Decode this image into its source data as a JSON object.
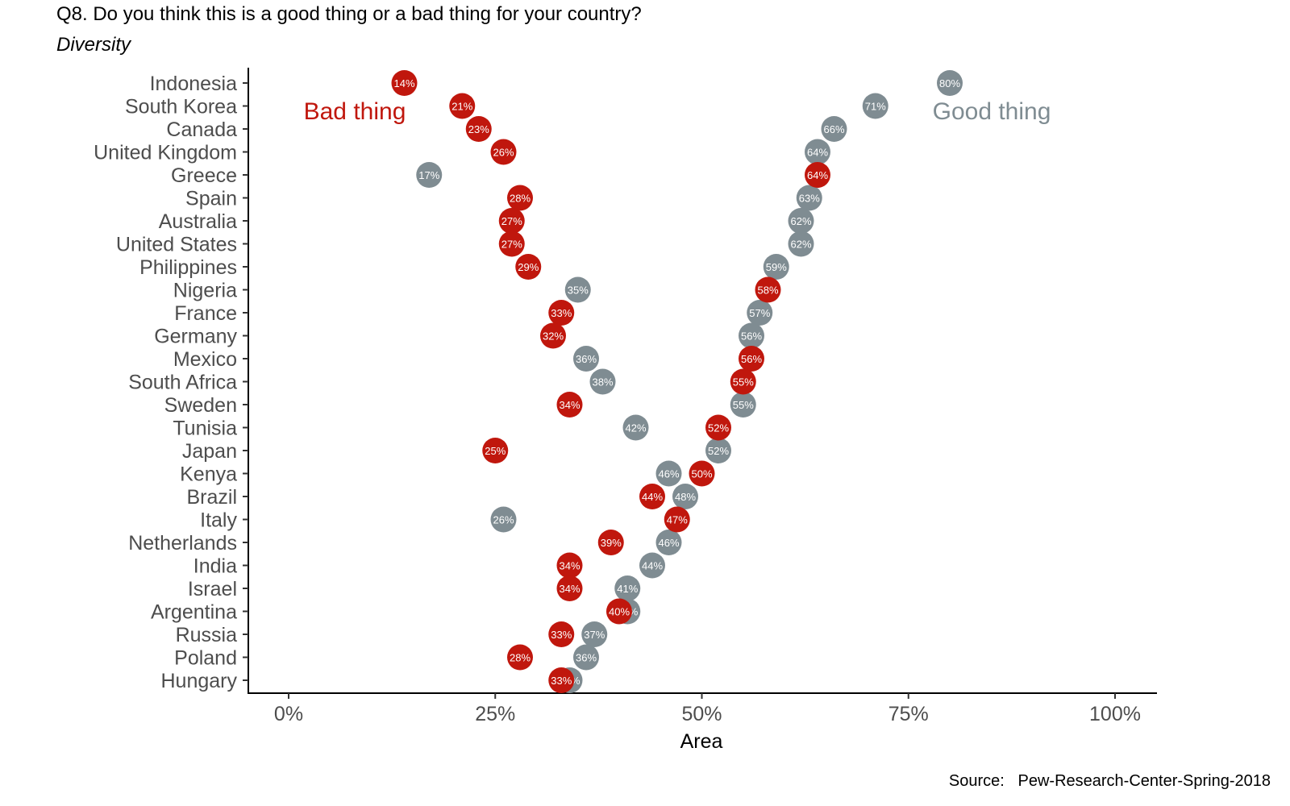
{
  "title": "Q8. Do you think this is a good thing or a bad thing for your country?",
  "subtitle": "Diversity",
  "caption": "Source:   Pew-Research-Center-Spring-2018",
  "chart_data": {
    "type": "scatter",
    "xlabel": "Area",
    "ylabel": "",
    "xlim": [
      0,
      100
    ],
    "x_ticks": [
      "0%",
      "25%",
      "50%",
      "75%",
      "100%"
    ],
    "x_tick_values": [
      0,
      25,
      50,
      75,
      100
    ],
    "grid": false,
    "categories": [
      "Indonesia",
      "South Korea",
      "Canada",
      "United Kingdom",
      "Greece",
      "Spain",
      "Australia",
      "United States",
      "Philippines",
      "Nigeria",
      "France",
      "Germany",
      "Mexico",
      "South Africa",
      "Sweden",
      "Tunisia",
      "Japan",
      "Kenya",
      "Brazil",
      "Italy",
      "Netherlands",
      "India",
      "Israel",
      "Argentina",
      "Russia",
      "Poland",
      "Hungary"
    ],
    "series": [
      {
        "name": "Good thing",
        "color": "#7f8c92",
        "values": [
          80,
          71,
          66,
          64,
          17,
          63,
          62,
          62,
          59,
          35,
          57,
          56,
          36,
          38,
          55,
          42,
          52,
          46,
          48,
          26,
          46,
          44,
          41,
          41,
          37,
          36,
          34
        ]
      },
      {
        "name": "Bad thing",
        "color": "#c0170d",
        "values": [
          14,
          21,
          23,
          26,
          64,
          28,
          27,
          27,
          29,
          58,
          33,
          32,
          56,
          55,
          34,
          52,
          25,
          50,
          44,
          47,
          39,
          34,
          34,
          40,
          33,
          28,
          33
        ]
      }
    ],
    "annotations": [
      {
        "text": "Bad thing",
        "color": "#c0170d"
      },
      {
        "text": "Good thing",
        "color": "#7f8c92"
      }
    ]
  }
}
